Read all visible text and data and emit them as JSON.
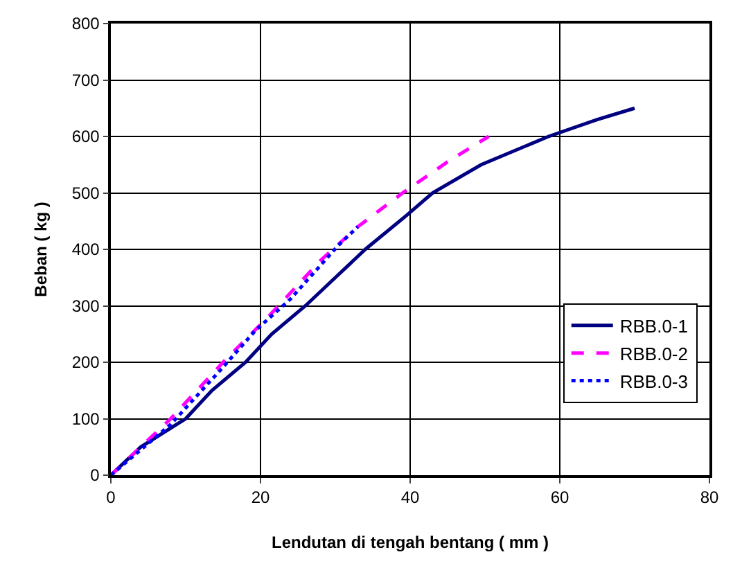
{
  "chart_data": {
    "type": "line",
    "xlabel": "Lendutan di tengah bentang ( mm )",
    "ylabel": "Beban ( kg )",
    "xlim": [
      0,
      80
    ],
    "xticks": [
      0,
      20,
      40,
      60,
      80
    ],
    "ylim": [
      0,
      800
    ],
    "yticks": [
      0,
      100,
      200,
      300,
      400,
      500,
      600,
      700,
      800
    ],
    "grid": true,
    "legend": "right",
    "marker": "none",
    "series": [
      {
        "name": "RBB.0-1",
        "color": "#000080",
        "line_style": "solid",
        "x": [
          0,
          4,
          10,
          13.5,
          18,
          21.5,
          26,
          30,
          34,
          39.5,
          43,
          49.5,
          58.5,
          65,
          70
        ],
        "values": [
          0,
          50,
          100,
          150,
          200,
          250,
          300,
          350,
          400,
          460,
          500,
          550,
          600,
          630,
          650
        ]
      },
      {
        "name": "RBB.0-2",
        "color": "#ff00ff",
        "line_style": "dashed",
        "x": [
          0,
          8,
          15,
          21,
          28,
          33,
          39,
          45,
          50.5
        ],
        "values": [
          0,
          100,
          200,
          280,
          380,
          440,
          500,
          555,
          600
        ]
      },
      {
        "name": "RBB.0-3",
        "color": "#0000ff",
        "line_style": "dotted",
        "x": [
          0,
          8,
          14.7,
          19.3,
          24,
          30.4,
          33
        ],
        "values": [
          0,
          90,
          187,
          256,
          312,
          407,
          440
        ]
      }
    ]
  }
}
